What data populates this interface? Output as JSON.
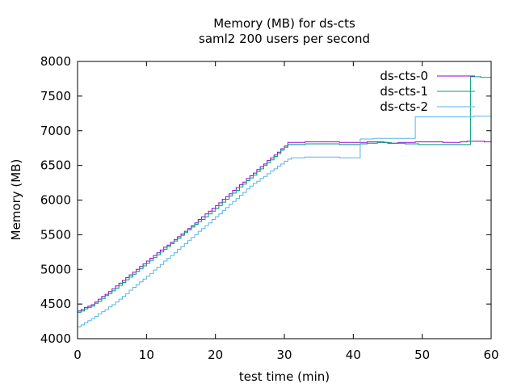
{
  "chart_data": {
    "type": "line",
    "title": "Memory (MB) for ds-cts",
    "subtitle": "saml2 200 users per second",
    "xlabel": "test time (min)",
    "ylabel": "Memory (MB)",
    "xlim": [
      0,
      60
    ],
    "ylim": [
      4000,
      8000
    ],
    "xticks": [
      "0",
      "10",
      "20",
      "30",
      "40",
      "50",
      "60"
    ],
    "yticks": [
      "4000",
      "4500",
      "5000",
      "5500",
      "6000",
      "6500",
      "7000",
      "7500",
      "8000"
    ],
    "grid": false,
    "legend_position": "top-right",
    "series": [
      {
        "name": "ds-cts-0",
        "color": "#9400d3",
        "points": [
          [
            0,
            4400
          ],
          [
            2,
            4490
          ],
          [
            5,
            4720
          ],
          [
            10,
            5120
          ],
          [
            15,
            5510
          ],
          [
            20,
            5920
          ],
          [
            25,
            6350
          ],
          [
            30,
            6780
          ],
          [
            30.5,
            6830
          ],
          [
            35,
            6840
          ],
          [
            40,
            6830
          ],
          [
            44,
            6840
          ],
          [
            45,
            6820
          ],
          [
            50,
            6840
          ],
          [
            55,
            6830
          ],
          [
            57,
            6850
          ],
          [
            60,
            6840
          ]
        ]
      },
      {
        "name": "ds-cts-1",
        "color": "#009e73",
        "points": [
          [
            0,
            4380
          ],
          [
            2,
            4470
          ],
          [
            5,
            4690
          ],
          [
            10,
            5090
          ],
          [
            15,
            5490
          ],
          [
            20,
            5880
          ],
          [
            25,
            6320
          ],
          [
            30,
            6760
          ],
          [
            30.5,
            6800
          ],
          [
            35,
            6810
          ],
          [
            40,
            6800
          ],
          [
            44,
            6830
          ],
          [
            48,
            6810
          ],
          [
            50,
            6800
          ],
          [
            56.5,
            6800
          ],
          [
            56.7,
            7780
          ],
          [
            60,
            7770
          ]
        ]
      },
      {
        "name": "ds-cts-2",
        "color": "#56b4e9",
        "points": [
          [
            0,
            4170
          ],
          [
            2,
            4290
          ],
          [
            5,
            4490
          ],
          [
            10,
            4900
          ],
          [
            15,
            5330
          ],
          [
            20,
            5760
          ],
          [
            25,
            6200
          ],
          [
            30,
            6560
          ],
          [
            31,
            6610
          ],
          [
            35,
            6620
          ],
          [
            40.5,
            6610
          ],
          [
            40.6,
            6880
          ],
          [
            45,
            6890
          ],
          [
            48.8,
            6890
          ],
          [
            48.9,
            7200
          ],
          [
            55,
            7200
          ],
          [
            60,
            7210
          ]
        ]
      }
    ]
  }
}
